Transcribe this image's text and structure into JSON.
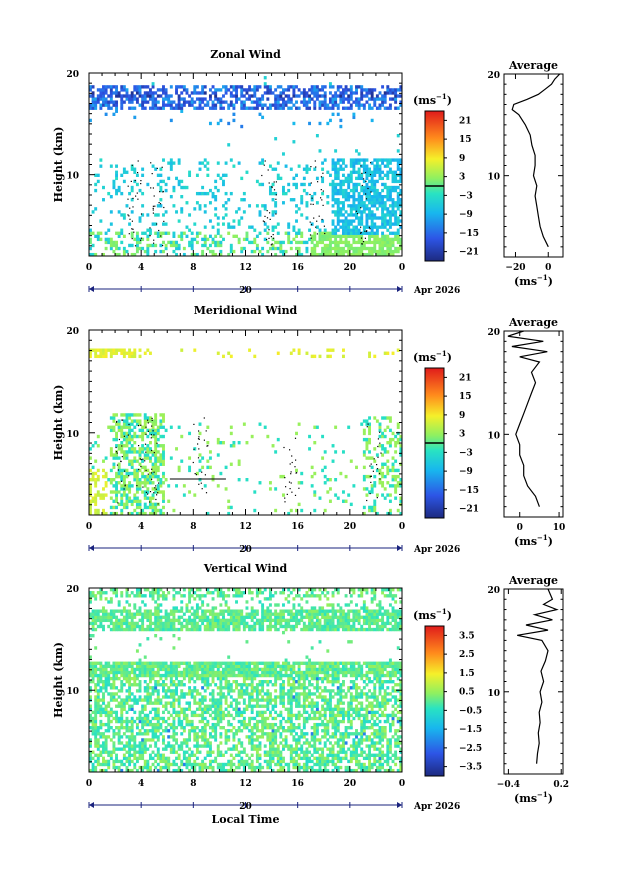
{
  "chart_data": [
    {
      "type": "heatmap",
      "title": "Zonal Wind",
      "ylabel": "Height (km)",
      "ylim": [
        2,
        20
      ],
      "y_ticks": [
        20,
        10
      ],
      "xlim": [
        0,
        24
      ],
      "x_ticks": [
        "0",
        "4",
        "8",
        "12",
        "16",
        "20",
        "0"
      ],
      "date_axis": {
        "day": "20",
        "month_year": "Apr 2026"
      },
      "colorbar": {
        "unit_base": "(ms",
        "unit_exp": "−1",
        "unit_close": ")",
        "range": [
          -24,
          24
        ],
        "marker": 0,
        "ticks": [
          "21",
          "15",
          "9",
          "3",
          "−3",
          "−9",
          "−15",
          "−21"
        ]
      },
      "profile": {
        "title": "Average",
        "x_ticks": [
          "−20",
          "0"
        ],
        "x_tick_values": [
          -20,
          0
        ],
        "xlim": [
          -27,
          9
        ],
        "xlabel_base": "(ms",
        "xlabel_exp": "−1",
        "xlabel_close": ")",
        "heights": [
          3,
          4,
          5,
          6,
          7,
          8,
          9,
          10,
          11,
          12,
          13,
          14,
          15,
          16,
          16.5,
          17,
          17.5,
          18,
          18.5,
          19,
          19.5,
          20
        ],
        "values": [
          0,
          -3,
          -5,
          -6,
          -7,
          -8,
          -7,
          -9,
          -8,
          -8,
          -10,
          -11,
          -14,
          -18,
          -22,
          -21,
          -13,
          -6,
          -2,
          2,
          4,
          7
        ]
      }
    },
    {
      "type": "heatmap",
      "title": "Meridional Wind",
      "ylabel": "Height (km)",
      "ylim": [
        2,
        20
      ],
      "y_ticks": [
        20,
        10
      ],
      "xlim": [
        0,
        24
      ],
      "x_ticks": [
        "0",
        "4",
        "8",
        "12",
        "16",
        "20",
        "0"
      ],
      "date_axis": {
        "day": "20",
        "month_year": "Apr 2026"
      },
      "colorbar": {
        "unit_base": "(ms",
        "unit_exp": "−1",
        "unit_close": ")",
        "range": [
          -24,
          24
        ],
        "marker": 0,
        "ticks": [
          "21",
          "15",
          "9",
          "3",
          "−3",
          "−9",
          "−15",
          "−21"
        ]
      },
      "profile": {
        "title": "Average",
        "x_ticks": [
          "0",
          "10"
        ],
        "x_tick_values": [
          0,
          10
        ],
        "xlim": [
          -4,
          11
        ],
        "xlabel_base": "(ms",
        "xlabel_exp": "−1",
        "xlabel_close": ")",
        "heights": [
          3,
          4,
          5,
          6,
          7,
          8,
          9,
          10,
          11,
          12,
          13,
          14,
          15,
          16,
          17,
          17.5,
          18,
          18.5,
          19,
          19.5,
          20
        ],
        "values": [
          5,
          4,
          2,
          1,
          1,
          0,
          0,
          -1,
          0,
          1,
          2,
          3,
          4,
          3,
          5,
          0,
          7,
          -2,
          6,
          -3,
          1
        ]
      }
    },
    {
      "type": "heatmap",
      "title": "Vertical Wind",
      "ylabel": "Height (km)",
      "xlabel": "Local Time",
      "ylim": [
        2,
        20
      ],
      "y_ticks": [
        20,
        10
      ],
      "xlim": [
        0,
        24
      ],
      "x_ticks": [
        "0",
        "4",
        "8",
        "12",
        "16",
        "20",
        "0"
      ],
      "date_axis": {
        "day": "20",
        "month_year": "Apr 2026"
      },
      "colorbar": {
        "unit_base": "(ms",
        "unit_exp": "−1",
        "unit_close": ")",
        "range": [
          -4,
          4
        ],
        "ticks": [
          "3.5",
          "2.5",
          "1.5",
          "0.5",
          "−0.5",
          "−1.5",
          "−2.5",
          "−3.5"
        ]
      },
      "profile": {
        "title": "Average",
        "x_ticks": [
          "−0.4",
          "0.2"
        ],
        "x_tick_values": [
          -0.4,
          0.2
        ],
        "xlim": [
          -0.45,
          0.22
        ],
        "xlabel_base": "(ms",
        "xlabel_exp": "−1",
        "xlabel_close": ")",
        "heights": [
          3,
          4,
          5,
          6,
          7,
          8,
          9,
          10,
          11,
          12,
          13,
          14,
          15,
          15.5,
          16,
          16.5,
          17,
          17.5,
          18,
          18.5,
          19,
          20
        ],
        "values": [
          -0.08,
          -0.07,
          -0.05,
          -0.06,
          -0.04,
          -0.05,
          -0.02,
          -0.04,
          0.0,
          -0.03,
          0.02,
          0.05,
          -0.02,
          -0.3,
          0.05,
          -0.2,
          0.1,
          -0.1,
          0.15,
          0.0,
          0.1,
          0.05
        ]
      }
    }
  ]
}
